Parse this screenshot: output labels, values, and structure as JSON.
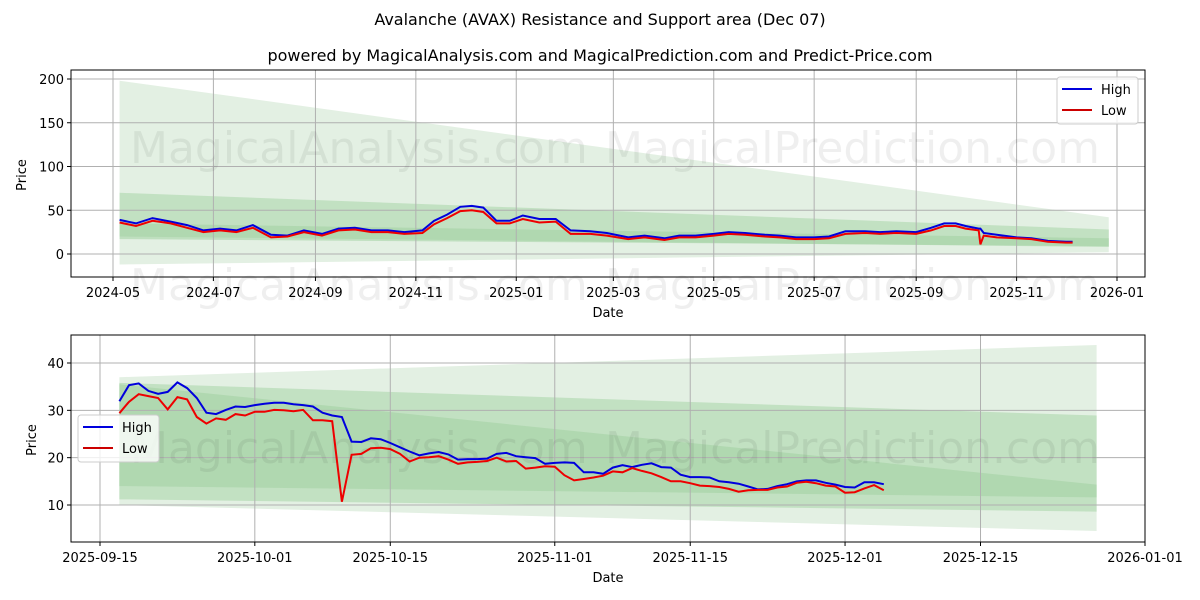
{
  "header": {
    "title": "Avalanche (AVAX) Resistance and Support area (Dec 07)",
    "subtitle": "powered by MagicalAnalysis.com and MagicalPrediction.com and Predict-Price.com"
  },
  "watermarks": [
    "MagicalAnalysis.com",
    "MagicalPrediction.com"
  ],
  "colors": {
    "high": "#0000dd",
    "low": "#ee0000",
    "band_light": "#e3f0e3",
    "band_mid": "#b7dcb7",
    "band_dark": "#a3d1a3",
    "grid": "#b0b0b0"
  },
  "chart_data": [
    {
      "type": "line",
      "title": "Avalanche (AVAX) Resistance and Support area (Dec 07) - full history",
      "xlabel": "Date",
      "ylabel": "Price",
      "ylim": [
        -25,
        210
      ],
      "xlim": [
        "2024-04-06",
        "2026-01-20"
      ],
      "yticks": [
        0,
        50,
        100,
        150,
        200
      ],
      "xticks": [
        "2024-05",
        "2024-07",
        "2024-09",
        "2024-11",
        "2025-01",
        "2025-03",
        "2025-05",
        "2025-07",
        "2025-09",
        "2025-11",
        "2026-01"
      ],
      "grid": true,
      "legend": {
        "position": "upper right",
        "entries": [
          "High",
          "Low"
        ]
      },
      "x": [
        "2024-05-05",
        "2024-05-15",
        "2024-05-25",
        "2024-06-05",
        "2024-06-15",
        "2024-06-25",
        "2024-07-05",
        "2024-07-15",
        "2024-07-25",
        "2024-08-05",
        "2024-08-15",
        "2024-08-25",
        "2024-09-05",
        "2024-09-15",
        "2024-09-25",
        "2024-10-05",
        "2024-10-15",
        "2024-10-25",
        "2024-11-05",
        "2024-11-12",
        "2024-11-20",
        "2024-11-28",
        "2024-12-05",
        "2024-12-12",
        "2024-12-20",
        "2024-12-28",
        "2025-01-05",
        "2025-01-15",
        "2025-01-25",
        "2025-02-03",
        "2025-02-15",
        "2025-02-25",
        "2025-03-10",
        "2025-03-20",
        "2025-04-01",
        "2025-04-10",
        "2025-04-20",
        "2025-05-01",
        "2025-05-10",
        "2025-05-20",
        "2025-06-01",
        "2025-06-10",
        "2025-06-20",
        "2025-07-01",
        "2025-07-10",
        "2025-07-20",
        "2025-08-01",
        "2025-08-10",
        "2025-08-20",
        "2025-09-01",
        "2025-09-10",
        "2025-09-18",
        "2025-09-25",
        "2025-10-01",
        "2025-10-09",
        "2025-10-10",
        "2025-10-12",
        "2025-10-20",
        "2025-11-01",
        "2025-11-10",
        "2025-11-20",
        "2025-12-01",
        "2025-12-05"
      ],
      "series": [
        {
          "name": "High",
          "values": [
            39,
            35,
            41,
            37,
            33,
            27,
            29,
            27,
            33,
            22,
            21,
            27,
            23,
            29,
            30,
            27,
            27,
            25,
            27,
            38,
            45,
            54,
            55,
            53,
            38,
            38,
            44,
            40,
            40,
            27,
            26,
            24,
            19,
            21,
            18,
            21,
            21,
            23,
            25,
            24,
            22,
            21,
            19,
            19,
            20,
            26,
            26,
            25,
            26,
            25,
            30,
            35,
            35,
            32,
            29,
            29,
            24,
            22,
            19,
            18,
            15,
            14,
            14
          ]
        },
        {
          "name": "Low",
          "values": [
            36,
            32,
            38,
            35,
            30,
            25,
            27,
            25,
            30,
            19,
            20,
            25,
            21,
            27,
            28,
            25,
            25,
            23,
            24,
            34,
            41,
            49,
            50,
            48,
            35,
            35,
            40,
            36,
            37,
            23,
            23,
            21,
            17,
            19,
            16,
            19,
            19,
            21,
            23,
            22,
            20,
            19,
            17,
            17,
            18,
            23,
            24,
            23,
            24,
            23,
            27,
            32,
            32,
            29,
            27,
            11,
            21,
            19,
            18,
            17,
            14,
            13,
            13
          ]
        }
      ],
      "bands": {
        "outer": {
          "start_date": "2024-05-05",
          "end_date": "2025-12-27",
          "start_range": [
            -12,
            198
          ],
          "end_range": [
            2,
            42
          ]
        },
        "inner": {
          "start_date": "2024-05-05",
          "end_date": "2025-12-27",
          "start_range": [
            20,
            70
          ],
          "end_range": [
            8,
            28
          ]
        },
        "core": {
          "start_date": "2024-05-05",
          "end_date": "2025-12-27",
          "start_range": [
            17,
            35
          ],
          "end_range": [
            9,
            18
          ]
        }
      }
    },
    {
      "type": "line",
      "title": "Avalanche (AVAX) recent zoom",
      "xlabel": "Date",
      "ylabel": "Price",
      "ylim": [
        2.5,
        46
      ],
      "xlim": [
        "2025-09-12",
        "2026-01-01"
      ],
      "yticks": [
        10,
        20,
        30,
        40
      ],
      "xticks": [
        "2025-09-15",
        "2025-10-01",
        "2025-10-15",
        "2025-11-01",
        "2025-11-15",
        "2025-12-01",
        "2025-12-15",
        "2026-01-01"
      ],
      "grid": true,
      "legend": {
        "position": "center left",
        "entries": [
          "High",
          "Low"
        ]
      },
      "x": [
        "2025-09-17",
        "2025-09-18",
        "2025-09-19",
        "2025-09-20",
        "2025-09-21",
        "2025-09-22",
        "2025-09-23",
        "2025-09-24",
        "2025-09-25",
        "2025-09-26",
        "2025-09-27",
        "2025-09-28",
        "2025-09-29",
        "2025-09-30",
        "2025-10-01",
        "2025-10-02",
        "2025-10-03",
        "2025-10-04",
        "2025-10-05",
        "2025-10-06",
        "2025-10-07",
        "2025-10-08",
        "2025-10-09",
        "2025-10-10",
        "2025-10-11",
        "2025-10-12",
        "2025-10-13",
        "2025-10-14",
        "2025-10-15",
        "2025-10-16",
        "2025-10-17",
        "2025-10-18",
        "2025-10-19",
        "2025-10-20",
        "2025-10-21",
        "2025-10-22",
        "2025-10-23",
        "2025-10-24",
        "2025-10-25",
        "2025-10-26",
        "2025-10-27",
        "2025-10-28",
        "2025-10-29",
        "2025-10-30",
        "2025-10-31",
        "2025-11-01",
        "2025-11-02",
        "2025-11-03",
        "2025-11-04",
        "2025-11-05",
        "2025-11-06",
        "2025-11-07",
        "2025-11-08",
        "2025-11-09",
        "2025-11-10",
        "2025-11-11",
        "2025-11-12",
        "2025-11-13",
        "2025-11-14",
        "2025-11-15",
        "2025-11-16",
        "2025-11-17",
        "2025-11-18",
        "2025-11-19",
        "2025-11-20",
        "2025-11-21",
        "2025-11-22",
        "2025-11-23",
        "2025-11-24",
        "2025-11-25",
        "2025-11-26",
        "2025-11-27",
        "2025-11-28",
        "2025-11-29",
        "2025-11-30",
        "2025-12-01",
        "2025-12-02",
        "2025-12-03",
        "2025-12-04",
        "2025-12-05"
      ],
      "series": [
        {
          "name": "High",
          "values": [
            31.9,
            35.3,
            35.7,
            34.1,
            33.5,
            33.9,
            35.9,
            34.7,
            32.6,
            29.5,
            29.2,
            30.1,
            30.8,
            30.7,
            31.1,
            31.4,
            31.6,
            31.6,
            31.3,
            31.1,
            30.8,
            29.5,
            28.9,
            28.6,
            23.4,
            23.3,
            24.1,
            23.9,
            23.1,
            22.2,
            21.3,
            20.5,
            20.9,
            21.2,
            20.7,
            19.6,
            19.7,
            19.7,
            19.8,
            20.8,
            21.0,
            20.3,
            20.1,
            19.9,
            18.7,
            18.9,
            19.0,
            18.9,
            16.9,
            16.9,
            16.6,
            17.9,
            18.4,
            18.0,
            18.5,
            18.8,
            18.0,
            17.9,
            16.4,
            15.9,
            15.9,
            15.8,
            15.0,
            14.8,
            14.5,
            13.9,
            13.3,
            13.4,
            14.0,
            14.4,
            15.0,
            15.2,
            15.2,
            14.7,
            14.3,
            13.8,
            13.7,
            14.8,
            14.8,
            14.4
          ]
        },
        {
          "name": "Low",
          "values": [
            29.4,
            31.8,
            33.4,
            33.0,
            32.6,
            30.2,
            32.8,
            32.3,
            28.6,
            27.2,
            28.3,
            28.0,
            29.2,
            28.9,
            29.7,
            29.7,
            30.1,
            30.0,
            29.8,
            30.1,
            27.9,
            27.9,
            27.7,
            10.7,
            20.6,
            20.8,
            22.0,
            22.1,
            21.8,
            20.8,
            19.2,
            20.0,
            20.1,
            20.3,
            19.6,
            18.7,
            19.0,
            19.1,
            19.3,
            20.0,
            19.2,
            19.3,
            17.7,
            17.9,
            18.2,
            18.1,
            16.3,
            15.2,
            15.5,
            15.8,
            16.2,
            17.1,
            16.9,
            17.8,
            17.2,
            16.7,
            15.9,
            15.0,
            15.0,
            14.6,
            14.1,
            14.0,
            13.8,
            13.4,
            12.8,
            13.1,
            13.2,
            13.2,
            13.7,
            13.9,
            14.7,
            14.9,
            14.6,
            14.1,
            13.9,
            12.6,
            12.7,
            13.5,
            14.2,
            13.1
          ]
        }
      ],
      "bands": {
        "outer": {
          "start_date": "2025-09-17",
          "end_date": "2025-12-27",
          "start_range": [
            10,
            37
          ],
          "end_range": [
            4.5,
            43.8
          ]
        },
        "inner": {
          "start_date": "2025-09-17",
          "end_date": "2025-12-27",
          "start_range": [
            11.2,
            35.8
          ],
          "end_range": [
            8.6,
            28.9
          ]
        },
        "core": {
          "start_date": "2025-09-17",
          "end_date": "2025-12-27",
          "start_range": [
            14,
            35.5
          ],
          "end_range": [
            11.6,
            14.3
          ]
        }
      }
    }
  ]
}
